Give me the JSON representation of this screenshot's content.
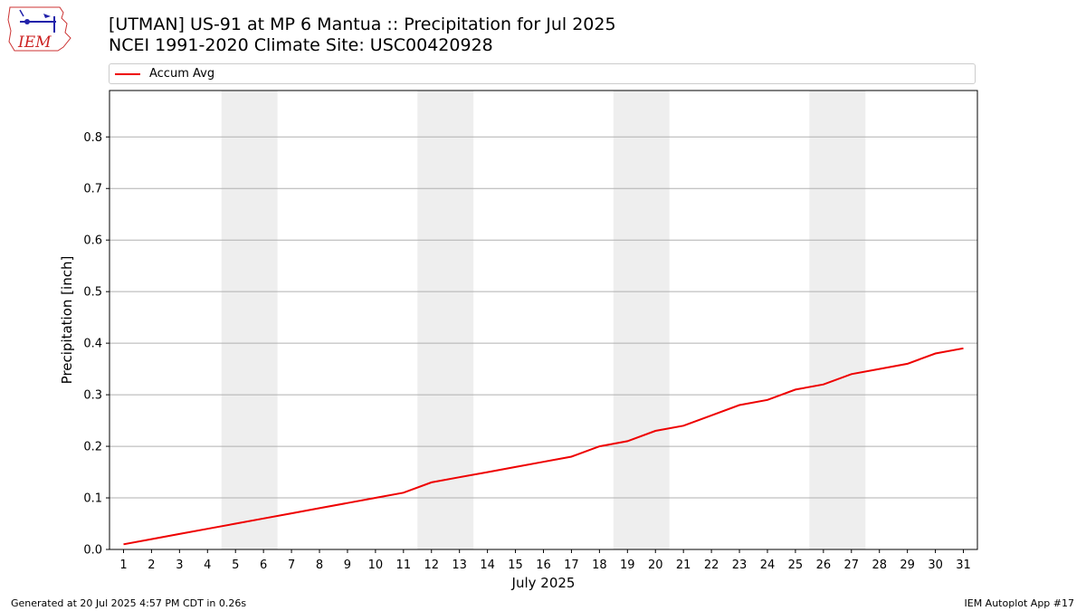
{
  "header": {
    "logo_text": "IEM",
    "title_line1": "[UTMAN] US-91 at MP 6 Mantua  :: Precipitation for Jul 2025",
    "title_line2": "NCEI 1991-2020 Climate Site: USC00420928"
  },
  "legend": {
    "series_label": "Accum Avg",
    "placement": "top"
  },
  "footer": {
    "left": "Generated at 20 Jul 2025 4:57 PM CDT in 0.26s",
    "right": "IEM Autoplot App #17"
  },
  "colors": {
    "series": "#ee0000",
    "weekend_band": "#eeeeee",
    "grid": "#b0b0b0"
  },
  "chart_data": {
    "type": "line",
    "title": "[UTMAN] US-91 at MP 6 Mantua  :: Precipitation for Jul 2025",
    "subtitle": "NCEI 1991-2020 Climate Site: USC00420928",
    "xlabel": "July 2025",
    "ylabel": "Precipitation [inch]",
    "x": [
      1,
      2,
      3,
      4,
      5,
      6,
      7,
      8,
      9,
      10,
      11,
      12,
      13,
      14,
      15,
      16,
      17,
      18,
      19,
      20,
      21,
      22,
      23,
      24,
      25,
      26,
      27,
      28,
      29,
      30,
      31
    ],
    "series": [
      {
        "name": "Accum Avg",
        "values": [
          0.01,
          0.02,
          0.03,
          0.04,
          0.05,
          0.06,
          0.07,
          0.08,
          0.09,
          0.1,
          0.11,
          0.13,
          0.14,
          0.15,
          0.16,
          0.17,
          0.18,
          0.2,
          0.21,
          0.23,
          0.24,
          0.26,
          0.28,
          0.29,
          0.31,
          0.32,
          0.34,
          0.35,
          0.36,
          0.38,
          0.39
        ]
      }
    ],
    "xlim": [
      0.5,
      31.5
    ],
    "ylim": [
      0,
      0.89
    ],
    "yticks": [
      0.0,
      0.1,
      0.2,
      0.3,
      0.4,
      0.5,
      0.6,
      0.7,
      0.8
    ],
    "ytick_labels": [
      "0.0",
      "0.1",
      "0.2",
      "0.3",
      "0.4",
      "0.5",
      "0.6",
      "0.7",
      "0.8"
    ],
    "weekend_days": [
      5,
      6,
      12,
      13,
      19,
      20,
      26,
      27
    ],
    "grid": "horizontal"
  }
}
